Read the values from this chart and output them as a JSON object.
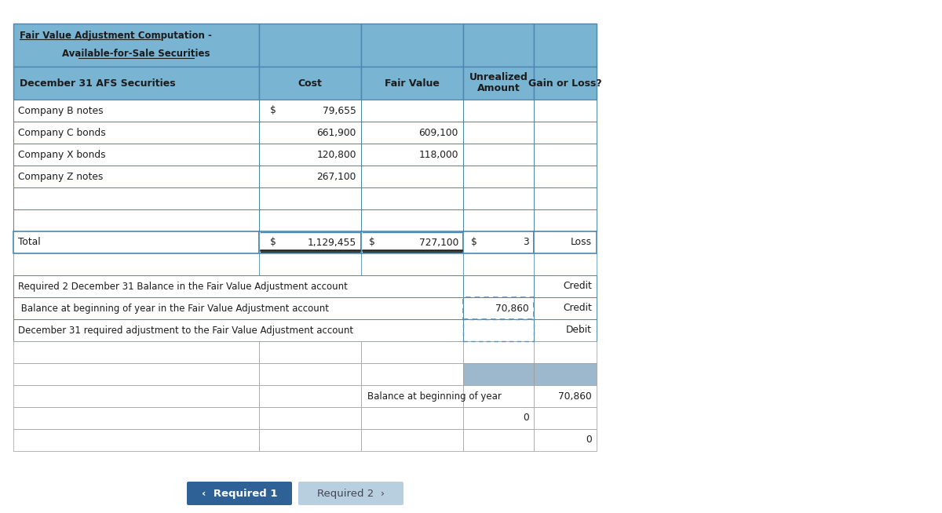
{
  "title_line1": "Fair Value Adjustment Computation -",
  "title_line2": "Available-for-Sale Securities",
  "header_col0": "December 31 AFS Securities",
  "header_col1": "Cost",
  "header_col2": "Fair Value",
  "header_col3_1": "Unrealized",
  "header_col3_2": "Amount",
  "header_col4": "Gain or Loss?",
  "data_rows": [
    {
      "label": "Company B notes",
      "cost_pfx": "$",
      "cost": "79,655",
      "fv": "",
      "unreal": "",
      "gl": ""
    },
    {
      "label": "Company C bonds",
      "cost_pfx": "",
      "cost": "661,900",
      "fv": "609,100",
      "unreal": "",
      "gl": ""
    },
    {
      "label": "Company X bonds",
      "cost_pfx": "",
      "cost": "120,800",
      "fv": "118,000",
      "unreal": "",
      "gl": ""
    },
    {
      "label": "Company Z notes",
      "cost_pfx": "",
      "cost": "267,100",
      "fv": "",
      "unreal": "",
      "gl": ""
    },
    {
      "label": "",
      "cost_pfx": "",
      "cost": "",
      "fv": "",
      "unreal": "",
      "gl": ""
    },
    {
      "label": "",
      "cost_pfx": "",
      "cost": "",
      "fv": "",
      "unreal": "",
      "gl": ""
    }
  ],
  "total": {
    "label": "Total",
    "cost_pfx": "$",
    "cost": "1,129,455",
    "fv_pfx": "$",
    "fv": "727,100",
    "unreal_pfx": "$",
    "unreal": "3",
    "gl": "Loss"
  },
  "req2_rows": [
    {
      "label": "Required 2 December 31 Balance in the Fair Value Adjustment account",
      "amount": "",
      "cd": "Credit"
    },
    {
      "label": " Balance at beginning of year in the Fair Value Adjustment account",
      "amount": "70,860",
      "cd": "Credit"
    },
    {
      "label": "December 31 required adjustment to the Fair Value Adjustment account",
      "amount": "",
      "cd": "Debit"
    }
  ],
  "ledger": [
    {
      "mid_text": "",
      "amount": "",
      "value": ""
    },
    {
      "mid_text": "",
      "amount": "",
      "value": ""
    },
    {
      "mid_text": "Balance at beginning of year",
      "amount": "",
      "value": "70,860"
    },
    {
      "mid_text": "",
      "amount": "0",
      "value": ""
    },
    {
      "mid_text": "",
      "amount": "",
      "value": "0"
    }
  ],
  "btn1_label": "‹  Required 1",
  "btn2_label": "Required 2  ›",
  "hdr_bg": "#7ab4d3",
  "border": "#4a86b0",
  "white": "#ffffff",
  "shade": "#9db8cc",
  "btn1_bg": "#2e6196",
  "btn2_bg": "#b8cfe0",
  "dotted": "#5590b8"
}
